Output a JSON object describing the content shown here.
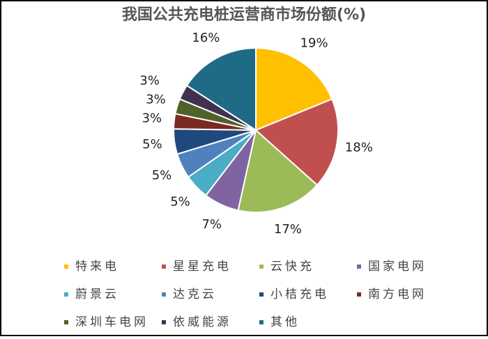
{
  "chart_data": {
    "type": "pie",
    "title": "我国公共充电桩运营商市场份额(%)",
    "categories": [
      "特来电",
      "星星充电",
      "云快充",
      "国家电网",
      "蔚景云",
      "达克云",
      "小桔充电",
      "南方电网",
      "深圳车电网",
      "依威能源",
      "其他"
    ],
    "values": [
      19,
      18,
      17,
      7,
      5,
      5,
      5,
      3,
      3,
      3,
      16
    ],
    "value_labels": [
      "19%",
      "18%",
      "17%",
      "7%",
      "5%",
      "5%",
      "5%",
      "3%",
      "3%",
      "3%",
      "16%"
    ],
    "colors": [
      "#ffc000",
      "#c0504d",
      "#9bbb59",
      "#8064a2",
      "#4bacc6",
      "#4f81bd",
      "#1f497d",
      "#7b2a22",
      "#4f6228",
      "#403151",
      "#1f6b85"
    ],
    "legend": "bottom"
  }
}
